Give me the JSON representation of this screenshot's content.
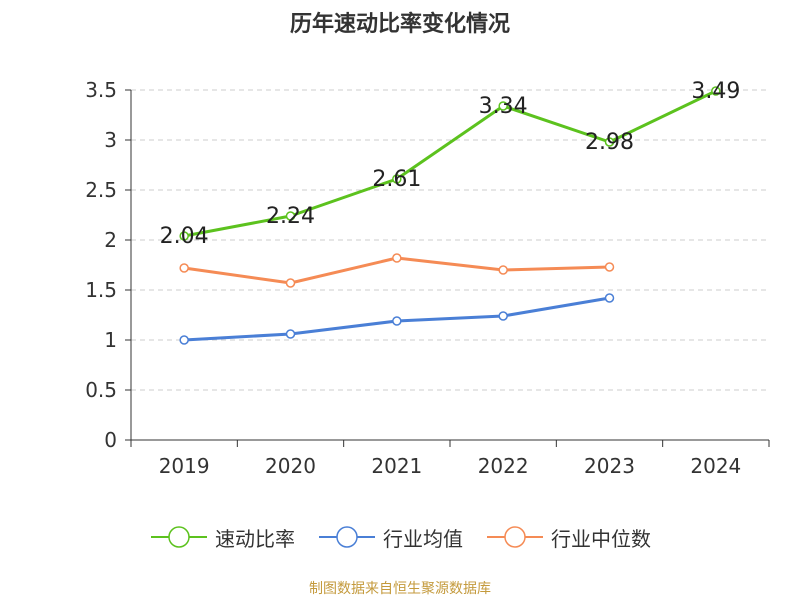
{
  "chart_data": {
    "type": "line",
    "title": "历年速动比率变化情况",
    "categories": [
      "2019",
      "2020",
      "2021",
      "2022",
      "2023",
      "2024"
    ],
    "series": [
      {
        "name": "速动比率",
        "color": "#5cc21e",
        "values": [
          2.04,
          2.24,
          2.61,
          3.34,
          2.98,
          3.49
        ],
        "show_labels": true
      },
      {
        "name": "行业均值",
        "color": "#4a7fd6",
        "values": [
          1.0,
          1.06,
          1.19,
          1.24,
          1.42,
          null
        ],
        "show_labels": false
      },
      {
        "name": "行业中位数",
        "color": "#f58b55",
        "values": [
          1.72,
          1.57,
          1.82,
          1.7,
          1.73,
          null
        ],
        "show_labels": false
      }
    ],
    "data_labels": [
      "2.04",
      "2.24",
      "2.61",
      "3.34",
      "2.98",
      "3.49"
    ],
    "ylim": [
      0,
      3.5
    ],
    "yticks": [
      0,
      0.5,
      1,
      1.5,
      2,
      2.5,
      3,
      3.5
    ],
    "ytick_labels": [
      "0",
      "0.5",
      "1",
      "1.5",
      "2",
      "2.5",
      "3",
      "3.5"
    ],
    "grid": true,
    "legend_position": "bottom"
  },
  "source": "制图数据来自恒生聚源数据库"
}
